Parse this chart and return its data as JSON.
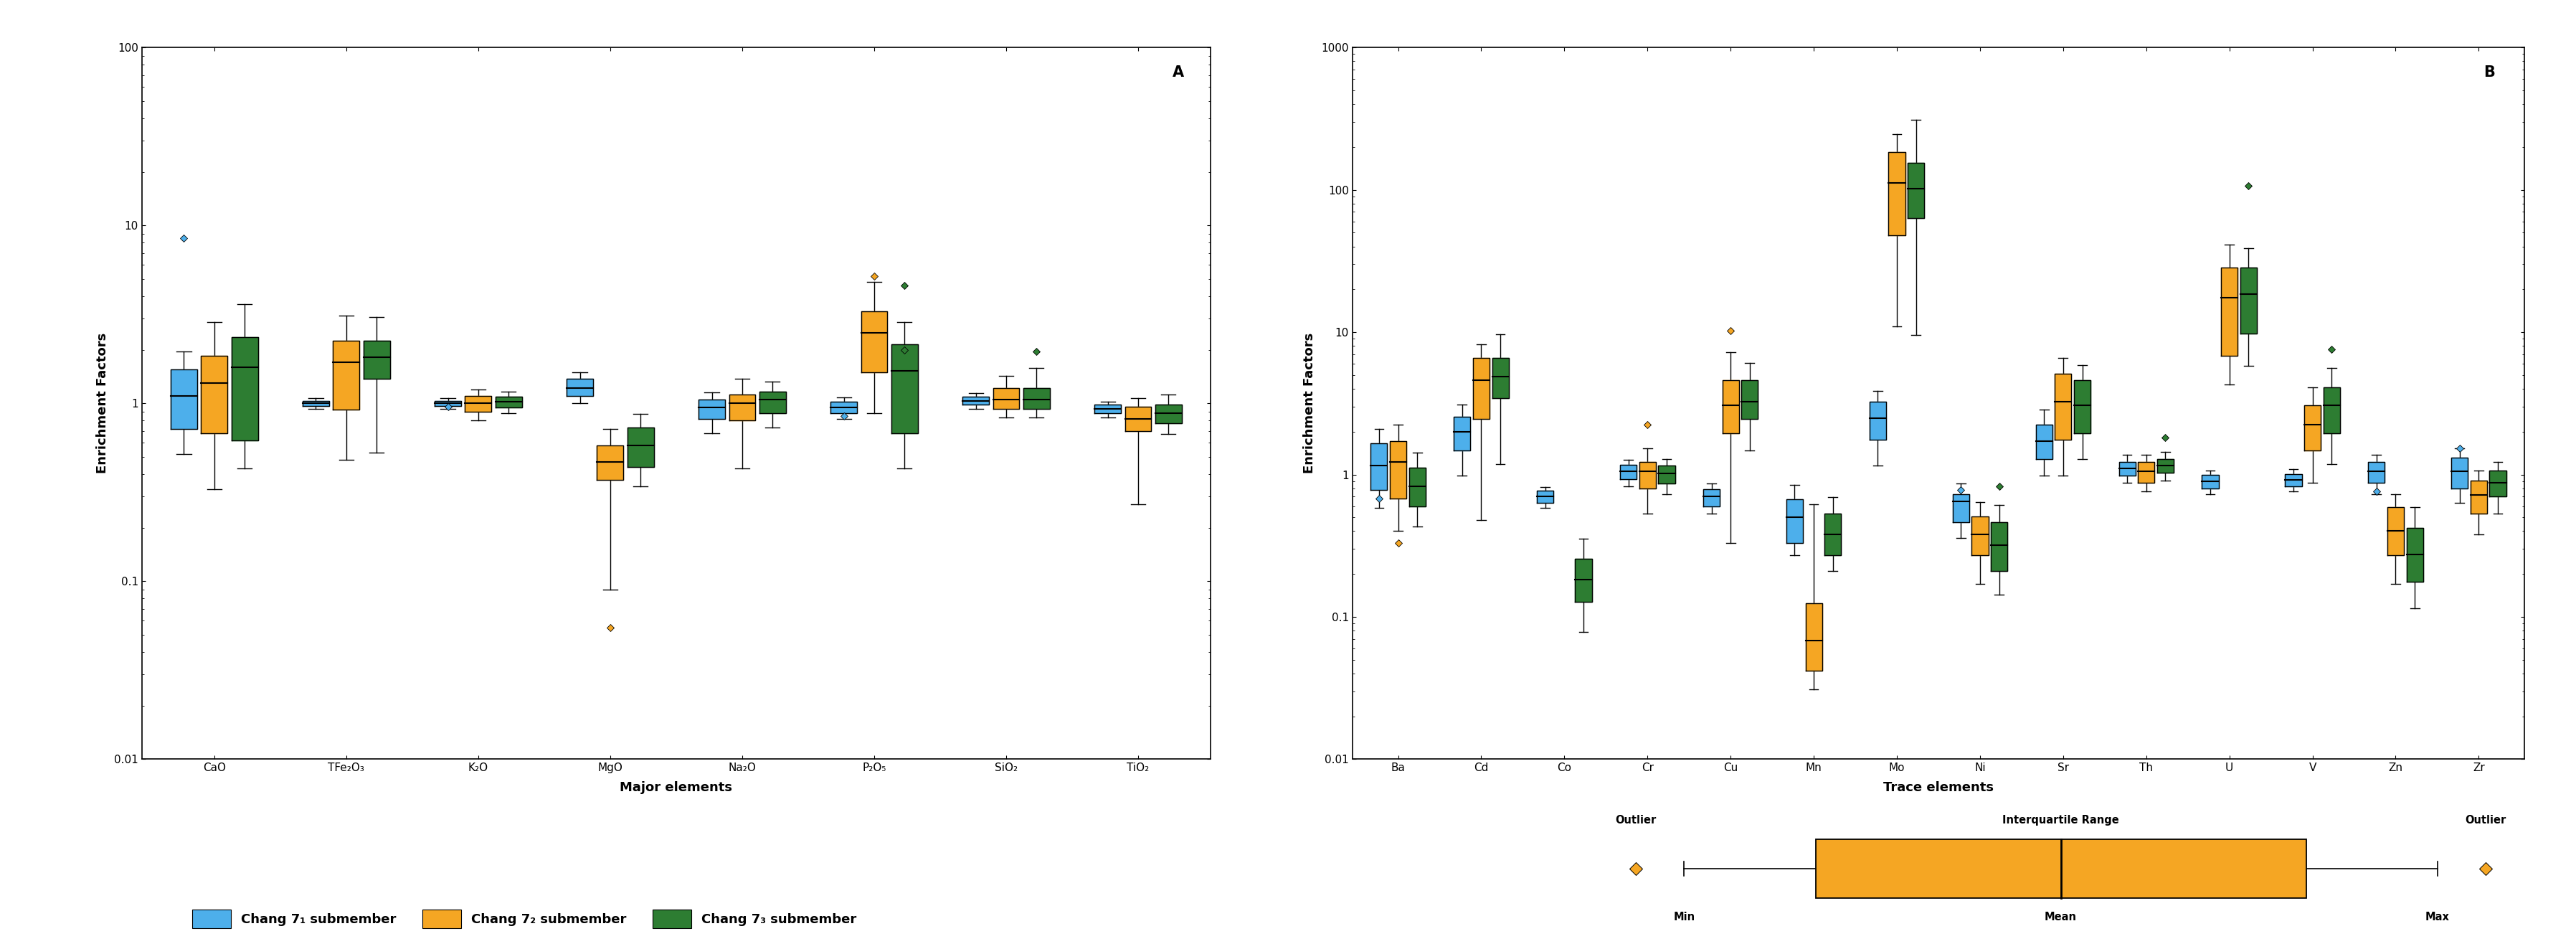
{
  "panel_A": {
    "title": "A",
    "xlabel": "Major elements",
    "ylabel": "Enrichment Factors",
    "ylim_log": [
      0.01,
      100
    ],
    "categories": [
      "CaO",
      "TFe₂O₃",
      "K₂O",
      "MgO",
      "Na₂O",
      "P₂O₅",
      "SiO₂",
      "TiO₂"
    ],
    "series": {
      "chang71": {
        "color": "#4DAFEB",
        "boxes": [
          {
            "q1": 0.72,
            "median": 1.05,
            "q3": 1.55,
            "whisker_low": 0.52,
            "whisker_high": 1.95,
            "mean": 1.1,
            "outliers": [
              8.5
            ]
          },
          {
            "q1": 0.97,
            "median": 1.0,
            "q3": 1.03,
            "whisker_low": 0.93,
            "whisker_high": 1.07,
            "mean": 1.0,
            "outliers": []
          },
          {
            "q1": 0.97,
            "median": 1.0,
            "q3": 1.03,
            "whisker_low": 0.93,
            "whisker_high": 1.07,
            "mean": 1.0,
            "outliers": [
              0.96
            ]
          },
          {
            "q1": 1.1,
            "median": 1.22,
            "q3": 1.37,
            "whisker_low": 1.0,
            "whisker_high": 1.5,
            "mean": 1.22,
            "outliers": []
          },
          {
            "q1": 0.82,
            "median": 0.95,
            "q3": 1.05,
            "whisker_low": 0.68,
            "whisker_high": 1.15,
            "mean": 0.95,
            "outliers": []
          },
          {
            "q1": 0.88,
            "median": 0.95,
            "q3": 1.02,
            "whisker_low": 0.82,
            "whisker_high": 1.08,
            "mean": 0.95,
            "outliers": [
              0.85
            ]
          },
          {
            "q1": 0.98,
            "median": 1.03,
            "q3": 1.09,
            "whisker_low": 0.93,
            "whisker_high": 1.14,
            "mean": 1.03,
            "outliers": []
          },
          {
            "q1": 0.88,
            "median": 0.93,
            "q3": 0.98,
            "whisker_low": 0.83,
            "whisker_high": 1.02,
            "mean": 0.93,
            "outliers": []
          }
        ]
      },
      "chang72": {
        "color": "#F5A623",
        "boxes": [
          {
            "q1": 0.68,
            "median": 1.1,
            "q3": 1.85,
            "whisker_low": 0.33,
            "whisker_high": 2.85,
            "mean": 1.3,
            "outliers": []
          },
          {
            "q1": 0.92,
            "median": 1.55,
            "q3": 2.25,
            "whisker_low": 0.48,
            "whisker_high": 3.1,
            "mean": 1.7,
            "outliers": []
          },
          {
            "q1": 0.9,
            "median": 1.0,
            "q3": 1.1,
            "whisker_low": 0.8,
            "whisker_high": 1.2,
            "mean": 1.0,
            "outliers": []
          },
          {
            "q1": 0.37,
            "median": 0.47,
            "q3": 0.58,
            "whisker_low": 0.09,
            "whisker_high": 0.72,
            "mean": 0.47,
            "outliers": [
              0.055
            ]
          },
          {
            "q1": 0.8,
            "median": 1.0,
            "q3": 1.12,
            "whisker_low": 0.43,
            "whisker_high": 1.38,
            "mean": 1.0,
            "outliers": []
          },
          {
            "q1": 1.5,
            "median": 2.5,
            "q3": 3.3,
            "whisker_low": 0.88,
            "whisker_high": 4.8,
            "mean": 2.5,
            "outliers": [
              5.2
            ]
          },
          {
            "q1": 0.93,
            "median": 1.05,
            "q3": 1.22,
            "whisker_low": 0.83,
            "whisker_high": 1.42,
            "mean": 1.05,
            "outliers": []
          },
          {
            "q1": 0.7,
            "median": 0.82,
            "q3": 0.96,
            "whisker_low": 0.27,
            "whisker_high": 1.07,
            "mean": 0.82,
            "outliers": []
          }
        ]
      },
      "chang73": {
        "color": "#2D7D32",
        "boxes": [
          {
            "q1": 0.62,
            "median": 1.55,
            "q3": 2.35,
            "whisker_low": 0.43,
            "whisker_high": 3.6,
            "mean": 1.6,
            "outliers": []
          },
          {
            "q1": 1.38,
            "median": 1.82,
            "q3": 2.25,
            "whisker_low": 0.53,
            "whisker_high": 3.05,
            "mean": 1.82,
            "outliers": []
          },
          {
            "q1": 0.95,
            "median": 1.02,
            "q3": 1.09,
            "whisker_low": 0.88,
            "whisker_high": 1.16,
            "mean": 1.02,
            "outliers": []
          },
          {
            "q1": 0.44,
            "median": 0.58,
            "q3": 0.73,
            "whisker_low": 0.34,
            "whisker_high": 0.87,
            "mean": 0.58,
            "outliers": []
          },
          {
            "q1": 0.88,
            "median": 1.05,
            "q3": 1.16,
            "whisker_low": 0.73,
            "whisker_high": 1.32,
            "mean": 1.05,
            "outliers": []
          },
          {
            "q1": 0.68,
            "median": 1.52,
            "q3": 2.15,
            "whisker_low": 0.43,
            "whisker_high": 2.85,
            "mean": 1.52,
            "outliers": [
              4.6,
              2.0
            ]
          },
          {
            "q1": 0.93,
            "median": 1.05,
            "q3": 1.22,
            "whisker_low": 0.83,
            "whisker_high": 1.58,
            "mean": 1.05,
            "outliers": [
              1.95
            ]
          },
          {
            "q1": 0.77,
            "median": 0.88,
            "q3": 0.98,
            "whisker_low": 0.67,
            "whisker_high": 1.12,
            "mean": 0.88,
            "outliers": []
          }
        ]
      }
    }
  },
  "panel_B": {
    "title": "B",
    "xlabel": "Trace elements",
    "ylabel": "Enrichment Factors",
    "ylim_log": [
      0.01,
      1000
    ],
    "categories": [
      "Ba",
      "Cd",
      "Co",
      "Cr",
      "Cu",
      "Mn",
      "Mo",
      "Ni",
      "Sr",
      "Th",
      "U",
      "V",
      "Zn",
      "Zr"
    ],
    "series": {
      "chang71": {
        "color": "#4DAFEB",
        "boxes": [
          {
            "q1": 0.78,
            "median": 1.15,
            "q3": 1.65,
            "whisker_low": 0.58,
            "whisker_high": 2.1,
            "mean": 1.15,
            "outliers": [
              0.68
            ]
          },
          {
            "q1": 1.48,
            "median": 2.0,
            "q3": 2.55,
            "whisker_low": 0.98,
            "whisker_high": 3.1,
            "mean": 2.0,
            "outliers": []
          },
          {
            "q1": 0.63,
            "median": 0.7,
            "q3": 0.77,
            "whisker_low": 0.58,
            "whisker_high": 0.82,
            "mean": 0.7,
            "outliers": []
          },
          {
            "q1": 0.93,
            "median": 1.05,
            "q3": 1.17,
            "whisker_low": 0.83,
            "whisker_high": 1.27,
            "mean": 1.05,
            "outliers": []
          },
          {
            "q1": 0.6,
            "median": 0.7,
            "q3": 0.79,
            "whisker_low": 0.53,
            "whisker_high": 0.87,
            "mean": 0.7,
            "outliers": []
          },
          {
            "q1": 0.33,
            "median": 0.5,
            "q3": 0.67,
            "whisker_low": 0.27,
            "whisker_high": 0.85,
            "mean": 0.5,
            "outliers": []
          },
          {
            "q1": 1.75,
            "median": 2.5,
            "q3": 3.25,
            "whisker_low": 1.15,
            "whisker_high": 3.85,
            "mean": 2.5,
            "outliers": []
          },
          {
            "q1": 0.46,
            "median": 0.65,
            "q3": 0.73,
            "whisker_low": 0.36,
            "whisker_high": 0.87,
            "mean": 0.65,
            "outliers": [
              0.78
            ]
          },
          {
            "q1": 1.28,
            "median": 1.72,
            "q3": 2.25,
            "whisker_low": 0.98,
            "whisker_high": 2.85,
            "mean": 1.72,
            "outliers": []
          },
          {
            "q1": 0.98,
            "median": 1.1,
            "q3": 1.22,
            "whisker_low": 0.88,
            "whisker_high": 1.37,
            "mean": 1.1,
            "outliers": []
          },
          {
            "q1": 0.8,
            "median": 0.9,
            "q3": 0.99,
            "whisker_low": 0.73,
            "whisker_high": 1.07,
            "mean": 0.9,
            "outliers": []
          },
          {
            "q1": 0.83,
            "median": 0.92,
            "q3": 1.01,
            "whisker_low": 0.76,
            "whisker_high": 1.09,
            "mean": 0.92,
            "outliers": []
          },
          {
            "q1": 0.88,
            "median": 1.05,
            "q3": 1.22,
            "whisker_low": 0.73,
            "whisker_high": 1.37,
            "mean": 1.05,
            "outliers": [
              0.76
            ]
          },
          {
            "q1": 0.8,
            "median": 1.05,
            "q3": 1.32,
            "whisker_low": 0.63,
            "whisker_high": 1.52,
            "mean": 1.05,
            "outliers": [
              1.52
            ]
          }
        ]
      },
      "chang72": {
        "color": "#F5A623",
        "boxes": [
          {
            "q1": 0.68,
            "median": 1.22,
            "q3": 1.72,
            "whisker_low": 0.4,
            "whisker_high": 2.25,
            "mean": 1.22,
            "outliers": [
              0.33
            ]
          },
          {
            "q1": 2.45,
            "median": 4.6,
            "q3": 6.6,
            "whisker_low": 0.48,
            "whisker_high": 8.2,
            "mean": 4.6,
            "outliers": []
          },
          {
            "q1": null,
            "median": null,
            "q3": null,
            "whisker_low": null,
            "whisker_high": null,
            "mean": null,
            "outliers": []
          },
          {
            "q1": 0.8,
            "median": 1.05,
            "q3": 1.22,
            "whisker_low": 0.53,
            "whisker_high": 1.52,
            "mean": 1.05,
            "outliers": [
              2.25
            ]
          },
          {
            "q1": 1.95,
            "median": 3.05,
            "q3": 4.6,
            "whisker_low": 0.33,
            "whisker_high": 7.2,
            "mean": 3.05,
            "outliers": [
              10.2
            ]
          },
          {
            "q1": 0.042,
            "median": 0.068,
            "q3": 0.125,
            "whisker_low": 0.031,
            "whisker_high": 0.62,
            "mean": 0.068,
            "outliers": []
          },
          {
            "q1": 48.0,
            "median": 112.0,
            "q3": 185.0,
            "whisker_low": 11.0,
            "whisker_high": 245.0,
            "mean": 112.0,
            "outliers": []
          },
          {
            "q1": 0.27,
            "median": 0.38,
            "q3": 0.51,
            "whisker_low": 0.17,
            "whisker_high": 0.64,
            "mean": 0.38,
            "outliers": []
          },
          {
            "q1": 1.75,
            "median": 3.25,
            "q3": 5.1,
            "whisker_low": 0.98,
            "whisker_high": 6.6,
            "mean": 3.25,
            "outliers": []
          },
          {
            "q1": 0.88,
            "median": 1.05,
            "q3": 1.22,
            "whisker_low": 0.76,
            "whisker_high": 1.37,
            "mean": 1.05,
            "outliers": []
          },
          {
            "q1": 6.8,
            "median": 17.5,
            "q3": 28.5,
            "whisker_low": 4.3,
            "whisker_high": 41.0,
            "mean": 17.5,
            "outliers": []
          },
          {
            "q1": 1.48,
            "median": 2.25,
            "q3": 3.05,
            "whisker_low": 0.88,
            "whisker_high": 4.1,
            "mean": 2.25,
            "outliers": []
          },
          {
            "q1": 0.27,
            "median": 0.4,
            "q3": 0.59,
            "whisker_low": 0.17,
            "whisker_high": 0.73,
            "mean": 0.4,
            "outliers": []
          },
          {
            "q1": 0.53,
            "median": 0.72,
            "q3": 0.91,
            "whisker_low": 0.38,
            "whisker_high": 1.07,
            "mean": 0.72,
            "outliers": []
          }
        ]
      },
      "chang73": {
        "color": "#2D7D32",
        "boxes": [
          {
            "q1": 0.6,
            "median": 0.83,
            "q3": 1.12,
            "whisker_low": 0.43,
            "whisker_high": 1.42,
            "mean": 0.83,
            "outliers": []
          },
          {
            "q1": 3.45,
            "median": 4.85,
            "q3": 6.6,
            "whisker_low": 1.18,
            "whisker_high": 9.7,
            "mean": 4.85,
            "outliers": []
          },
          {
            "q1": 0.127,
            "median": 0.182,
            "q3": 0.255,
            "whisker_low": 0.078,
            "whisker_high": 0.355,
            "mean": 0.182,
            "outliers": []
          },
          {
            "q1": 0.86,
            "median": 1.02,
            "q3": 1.16,
            "whisker_low": 0.73,
            "whisker_high": 1.29,
            "mean": 1.02,
            "outliers": []
          },
          {
            "q1": 2.45,
            "median": 3.25,
            "q3": 4.6,
            "whisker_low": 1.48,
            "whisker_high": 6.1,
            "mean": 3.25,
            "outliers": []
          },
          {
            "q1": 0.27,
            "median": 0.38,
            "q3": 0.53,
            "whisker_low": 0.21,
            "whisker_high": 0.69,
            "mean": 0.38,
            "outliers": []
          },
          {
            "q1": 63.0,
            "median": 102.0,
            "q3": 155.0,
            "whisker_low": 9.5,
            "whisker_high": 310.0,
            "mean": 102.0,
            "outliers": []
          },
          {
            "q1": 0.21,
            "median": 0.32,
            "q3": 0.46,
            "whisker_low": 0.144,
            "whisker_high": 0.61,
            "mean": 0.32,
            "outliers": [
              0.83
            ]
          },
          {
            "q1": 1.95,
            "median": 3.05,
            "q3": 4.6,
            "whisker_low": 1.28,
            "whisker_high": 5.9,
            "mean": 3.05,
            "outliers": []
          },
          {
            "q1": 1.03,
            "median": 1.16,
            "q3": 1.29,
            "whisker_low": 0.91,
            "whisker_high": 1.44,
            "mean": 1.16,
            "outliers": [
              1.82
            ]
          },
          {
            "q1": 9.8,
            "median": 18.5,
            "q3": 28.5,
            "whisker_low": 5.8,
            "whisker_high": 39.0,
            "mean": 18.5,
            "outliers": [
              107.0
            ]
          },
          {
            "q1": 1.95,
            "median": 3.05,
            "q3": 4.1,
            "whisker_low": 1.18,
            "whisker_high": 5.6,
            "mean": 3.05,
            "outliers": [
              7.6
            ]
          },
          {
            "q1": 0.177,
            "median": 0.275,
            "q3": 0.42,
            "whisker_low": 0.115,
            "whisker_high": 0.59,
            "mean": 0.275,
            "outliers": []
          },
          {
            "q1": 0.7,
            "median": 0.88,
            "q3": 1.07,
            "whisker_low": 0.53,
            "whisker_high": 1.22,
            "mean": 0.88,
            "outliers": []
          }
        ]
      }
    }
  },
  "colors": {
    "chang71": "#4DAFEB",
    "chang72": "#F5A623",
    "chang73": "#2D7D32"
  },
  "legend_labels": {
    "chang71": "Chang 7₁ submember",
    "chang72": "Chang 7₂ submember",
    "chang73": "Chang 7₃ submember"
  }
}
